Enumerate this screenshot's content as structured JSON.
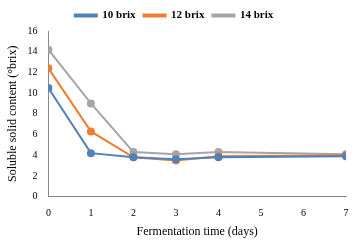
{
  "chart_data": {
    "type": "line",
    "x_label": "Fermentation time (days)",
    "y_label": "Soluble solid content (°brix)",
    "x": [
      0,
      1,
      2,
      3,
      4,
      7
    ],
    "series": [
      {
        "name": "10 brix",
        "color": "#4f81bd",
        "values": [
          10.5,
          4.2,
          3.8,
          3.6,
          3.8,
          3.9
        ]
      },
      {
        "name": "12 brix",
        "color": "#ed7d31",
        "values": [
          12.4,
          6.3,
          3.8,
          3.5,
          3.9,
          4.0
        ]
      },
      {
        "name": "14 brix",
        "color": "#a5a5a5",
        "values": [
          14.2,
          9.0,
          4.3,
          4.1,
          4.3,
          4.1
        ]
      }
    ],
    "xlim": [
      0,
      7
    ],
    "xticks": [
      0,
      1,
      2,
      3,
      4,
      5,
      6,
      7
    ],
    "ylim": [
      0,
      16
    ],
    "yticks": [
      0,
      2,
      4,
      6,
      8,
      10,
      12,
      14,
      16
    ],
    "grid": false,
    "legend": "top",
    "marker": "circle"
  }
}
